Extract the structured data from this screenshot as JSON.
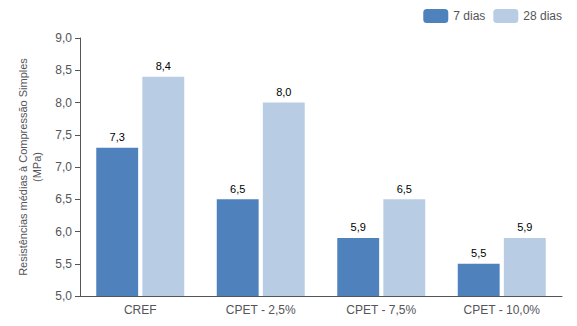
{
  "chart_data": {
    "type": "bar",
    "categories": [
      "CREF",
      "CPET - 2,5%",
      "CPET - 7,5%",
      "CPET - 10,0%"
    ],
    "series": [
      {
        "name": "7 dias",
        "color": "#4f81bd",
        "values": [
          7.3,
          6.5,
          5.9,
          5.5
        ],
        "value_labels": [
          "7,3",
          "6,5",
          "5,9",
          "5,5"
        ]
      },
      {
        "name": "28 dias",
        "color": "#b8cce4",
        "values": [
          8.4,
          8.0,
          6.5,
          5.9
        ],
        "value_labels": [
          "8,4",
          "8,0",
          "6,5",
          "5,9"
        ]
      }
    ],
    "ylabel": "Resistências médias à Compressão Simples\n(MPa)",
    "ylim": [
      5.0,
      9.0
    ],
    "yticks": [
      {
        "value": 5.0,
        "label": "5,0"
      },
      {
        "value": 5.5,
        "label": "5,5"
      },
      {
        "value": 6.0,
        "label": "6,0"
      },
      {
        "value": 6.5,
        "label": "6,5"
      },
      {
        "value": 7.0,
        "label": "7,0"
      },
      {
        "value": 7.5,
        "label": "7,5"
      },
      {
        "value": 8.0,
        "label": "8,0"
      },
      {
        "value": 8.5,
        "label": "8,5"
      },
      {
        "value": 9.0,
        "label": "9,0"
      }
    ],
    "data_labels": true,
    "legend": "upper right",
    "grid": false
  }
}
